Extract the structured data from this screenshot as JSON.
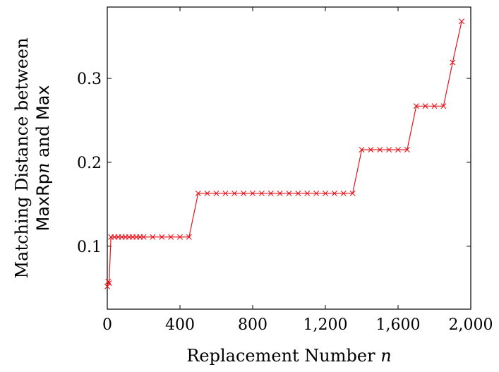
{
  "chart_data": {
    "type": "line",
    "title": "",
    "xlabel": "Replacement Number n",
    "xlabel_parts": {
      "text": "Replacement Number ",
      "var": "n"
    },
    "ylabel_line1": "Matching Distance between",
    "ylabel_line2_parts": {
      "a": "MaxRp",
      "var": "n",
      "b": " and ",
      "c": "Max"
    },
    "xlim": [
      0,
      2000
    ],
    "ylim": [
      0.025,
      0.385
    ],
    "x_ticks": [
      0,
      400,
      800,
      1200,
      1600,
      2000
    ],
    "x_tick_labels": [
      "0",
      "400",
      "800",
      "1,200",
      "1,600",
      "2,000"
    ],
    "y_ticks": [
      0.1,
      0.2,
      0.3
    ],
    "y_tick_labels": [
      "0.1",
      "0.2",
      "0.3"
    ],
    "grid": false,
    "series": [
      {
        "color": "#e8141b",
        "marker": "x",
        "x": [
          0,
          5,
          10,
          20,
          40,
          60,
          80,
          100,
          120,
          140,
          160,
          180,
          200,
          250,
          300,
          350,
          400,
          450,
          500,
          550,
          600,
          650,
          700,
          750,
          800,
          850,
          900,
          950,
          1000,
          1050,
          1100,
          1150,
          1200,
          1250,
          1300,
          1350,
          1400,
          1450,
          1500,
          1550,
          1600,
          1650,
          1700,
          1750,
          1800,
          1850,
          1900,
          1950
        ],
        "y": [
          0.052,
          0.058,
          0.056,
          0.111,
          0.111,
          0.111,
          0.111,
          0.111,
          0.111,
          0.111,
          0.111,
          0.111,
          0.111,
          0.111,
          0.111,
          0.111,
          0.111,
          0.111,
          0.163,
          0.163,
          0.163,
          0.163,
          0.163,
          0.163,
          0.163,
          0.163,
          0.163,
          0.163,
          0.163,
          0.163,
          0.163,
          0.163,
          0.163,
          0.163,
          0.163,
          0.163,
          0.215,
          0.215,
          0.215,
          0.215,
          0.215,
          0.215,
          0.267,
          0.267,
          0.267,
          0.267,
          0.319,
          0.368
        ]
      }
    ]
  }
}
